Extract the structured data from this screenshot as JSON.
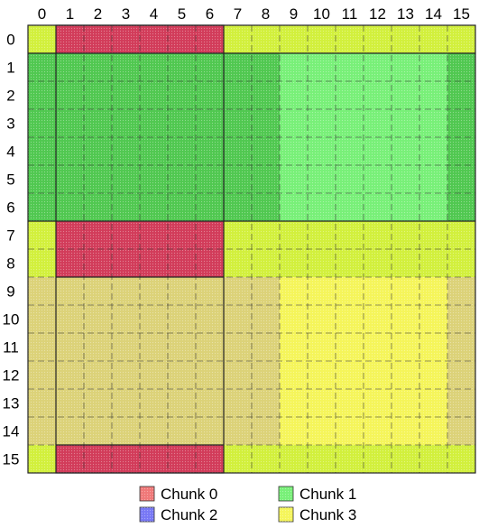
{
  "columns": [
    "0",
    "1",
    "2",
    "3",
    "4",
    "5",
    "6",
    "7",
    "8",
    "9",
    "10",
    "11",
    "12",
    "13",
    "14",
    "15"
  ],
  "rows": [
    "0",
    "1",
    "2",
    "3",
    "4",
    "5",
    "6",
    "7",
    "8",
    "9",
    "10",
    "11",
    "12",
    "13",
    "14",
    "15"
  ],
  "regions": [
    {
      "name": "chunk0-cols",
      "chunk": 0,
      "col_start": 1,
      "col_end": 6,
      "row_start": 0,
      "row_end": 15,
      "tone": "dark"
    },
    {
      "name": "chunk0-core",
      "chunk": 0,
      "col_start": 1,
      "col_end": 6,
      "row_start": 1,
      "row_end": 6,
      "tone": "light"
    },
    {
      "name": "chunk1-rows",
      "chunk": 1,
      "col_start": 0,
      "col_end": 15,
      "row_start": 1,
      "row_end": 6,
      "tone": "dark"
    },
    {
      "name": "chunk1-core",
      "chunk": 1,
      "col_start": 9,
      "col_end": 14,
      "row_start": 1,
      "row_end": 6,
      "tone": "light"
    },
    {
      "name": "chunk2-core",
      "chunk": 2,
      "col_start": 1,
      "col_end": 6,
      "row_start": 9,
      "row_end": 14,
      "tone": "light"
    },
    {
      "name": "chunk3-rows",
      "chunk": 3,
      "col_start": 0,
      "col_end": 15,
      "row_start": 9,
      "row_end": 14,
      "tone": "dark"
    },
    {
      "name": "chunk3-core",
      "chunk": 3,
      "col_start": 9,
      "col_end": 14,
      "row_start": 9,
      "row_end": 14,
      "tone": "light"
    }
  ],
  "base_color": "#d2f03c",
  "colors": {
    "0": {
      "light": "#f07878",
      "dark": "#d23c5a"
    },
    "1": {
      "light": "#78f078",
      "dark": "#50c850"
    },
    "2": {
      "light": "#7878f5",
      "dark": "#5a5af0"
    },
    "3": {
      "light": "#f5f55a",
      "dark": "#dcd278"
    }
  },
  "legend": [
    {
      "label": "Chunk 0",
      "color": "#f07878"
    },
    {
      "label": "Chunk 1",
      "color": "#78f078"
    },
    {
      "label": "Chunk 2",
      "color": "#7878f5"
    },
    {
      "label": "Chunk 3",
      "color": "#f5f55a"
    }
  ]
}
